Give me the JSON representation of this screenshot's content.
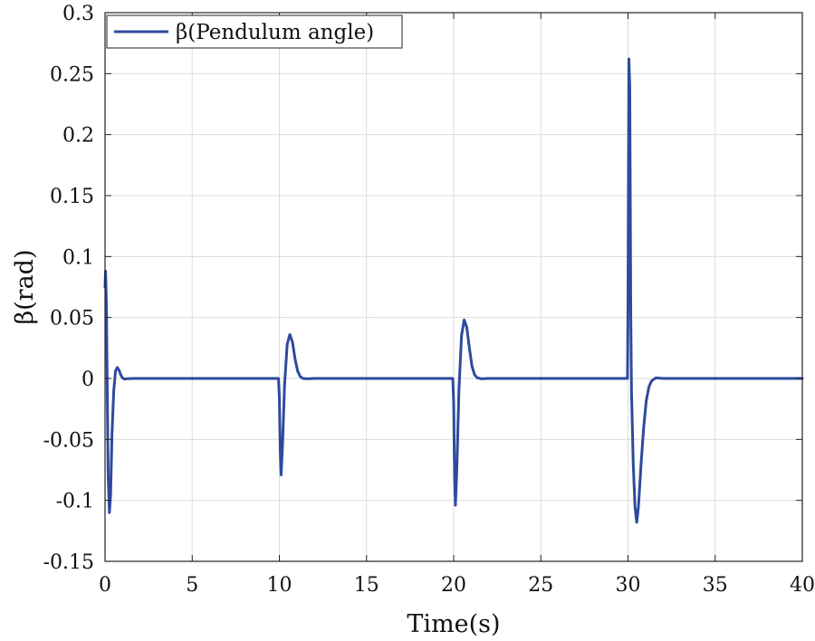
{
  "chart_data": {
    "type": "line",
    "title": "",
    "xlabel": "Time(s)",
    "ylabel": "β(rad)",
    "xlim": [
      0,
      40
    ],
    "ylim": [
      -0.15,
      0.3
    ],
    "grid": true,
    "legend_position": "top-left",
    "xticks": [
      0,
      5,
      10,
      15,
      20,
      25,
      30,
      35,
      40
    ],
    "xtick_labels": [
      "0",
      "5",
      "10",
      "15",
      "20",
      "25",
      "30",
      "35",
      "40"
    ],
    "yticks": [
      -0.15,
      -0.1,
      -0.05,
      0,
      0.05,
      0.1,
      0.15,
      0.2,
      0.25,
      0.3
    ],
    "ytick_labels": [
      "-0.15",
      "-0.1",
      "-0.05",
      "0",
      "0.05",
      "0.1",
      "0.15",
      "0.2",
      "0.25",
      "0.3"
    ],
    "series": [
      {
        "name": "β(Pendulum angle)",
        "color": "#2E4A9E",
        "x": [
          0,
          0.03,
          0.08,
          0.12,
          0.18,
          0.25,
          0.32,
          0.4,
          0.5,
          0.6,
          0.7,
          0.8,
          0.9,
          1.0,
          1.1,
          1.3,
          1.6,
          2.0,
          9.95,
          10.0,
          10.05,
          10.1,
          10.18,
          10.3,
          10.45,
          10.6,
          10.75,
          10.9,
          11.05,
          11.2,
          11.35,
          11.6,
          12.0,
          19.95,
          20.0,
          20.05,
          20.1,
          20.18,
          20.3,
          20.45,
          20.6,
          20.75,
          20.9,
          21.05,
          21.2,
          21.35,
          21.6,
          22.0,
          29.97,
          30.0,
          30.05,
          30.1,
          30.13,
          30.16,
          30.2,
          30.3,
          30.4,
          30.5,
          30.6,
          30.75,
          30.9,
          31.05,
          31.2,
          31.35,
          31.6,
          32.0,
          40
        ],
        "values": [
          0.075,
          0.088,
          0.06,
          0.0,
          -0.08,
          -0.11,
          -0.095,
          -0.045,
          -0.01,
          0.006,
          0.009,
          0.007,
          0.003,
          0.0005,
          -0.0005,
          -0.0002,
          0,
          0,
          0,
          -0.015,
          -0.06,
          -0.079,
          -0.055,
          -0.005,
          0.028,
          0.036,
          0.03,
          0.016,
          0.006,
          0.0015,
          0.0,
          -0.0003,
          0,
          0,
          -0.02,
          -0.08,
          -0.104,
          -0.075,
          -0.01,
          0.035,
          0.048,
          0.042,
          0.025,
          0.01,
          0.003,
          0.0005,
          -0.0003,
          0,
          0,
          0.06,
          0.262,
          0.24,
          0.15,
          0.05,
          -0.01,
          -0.07,
          -0.105,
          -0.118,
          -0.105,
          -0.07,
          -0.04,
          -0.018,
          -0.007,
          -0.002,
          0.0005,
          0,
          0
        ]
      }
    ]
  }
}
